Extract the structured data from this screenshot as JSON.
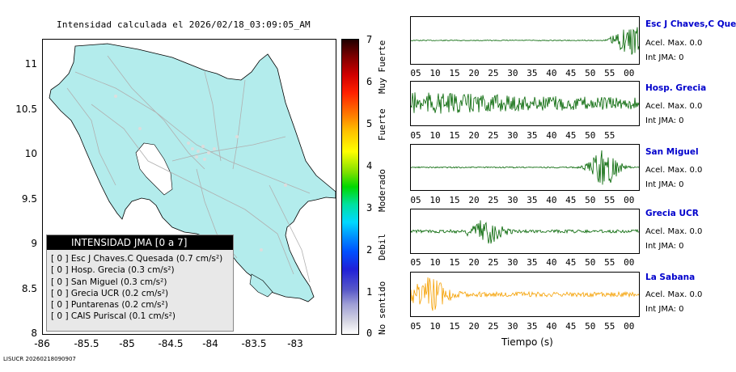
{
  "title": "Intensidad calculada el 2026/02/18_03:09:05_AM",
  "map": {
    "y_ticks": [
      "11",
      "10.5",
      "10",
      "9.5",
      "9",
      "8.5",
      "8"
    ],
    "x_ticks": [
      "-86",
      "-85.5",
      "-85",
      "-84.5",
      "-84",
      "-83.5",
      "-83"
    ],
    "land_color": "#b3ecec",
    "road_color": "#b0b0b0"
  },
  "legend": {
    "title": "INTENSIDAD JMA [0 a 7]",
    "rows": [
      "[ 0 ]  Esc J Chaves.C Quesada (0.7 cm/s²)",
      "[ 0 ]  Hosp. Grecia (0.3 cm/s²)",
      "[ 0 ]  San Miguel (0.3 cm/s²)",
      "[ 0 ]  Grecia UCR (0.2 cm/s²)",
      "[ 0 ]  Puntarenas (0.2 cm/s²)",
      "[ 0 ]  CAIS Puriscal (0.1 cm/s²)"
    ]
  },
  "colorbar": {
    "ticks": [
      "7",
      "6",
      "5",
      "4",
      "3",
      "2",
      "1",
      "0"
    ],
    "labels": [
      "Muy Fuerte",
      "Fuerte",
      "Moderado",
      "Debil",
      "No sentido"
    ]
  },
  "stations": [
    {
      "name": "Esc J Chaves,C Quesada",
      "acel": "Acel. Max. 0.0",
      "int": "Int JMA: 0",
      "ticks": [
        "05",
        "10",
        "15",
        "20",
        "25",
        "30",
        "35",
        "40",
        "45",
        "50",
        "55",
        "00"
      ],
      "color": "#006400"
    },
    {
      "name": "Hosp. Grecia",
      "acel": "Acel. Max. 0.0",
      "int": "Int JMA: 0",
      "ticks": [
        "05",
        "10",
        "15",
        "20",
        "25",
        "30",
        "35",
        "40",
        "45",
        "50",
        "55"
      ],
      "color": "#006400"
    },
    {
      "name": "San Miguel",
      "acel": "Acel. Max. 0.0",
      "int": "Int JMA: 0",
      "ticks": [
        "05",
        "10",
        "15",
        "20",
        "25",
        "30",
        "35",
        "40",
        "45",
        "50",
        "55",
        "00"
      ],
      "color": "#006400"
    },
    {
      "name": "Grecia UCR",
      "acel": "Acel. Max. 0.0",
      "int": "Int JMA: 0",
      "ticks": [
        "05",
        "10",
        "15",
        "20",
        "25",
        "30",
        "35",
        "40",
        "45",
        "50",
        "55",
        "00"
      ],
      "color": "#006400"
    },
    {
      "name": "La Sabana",
      "acel": "Acel. Max. 0.0",
      "int": "Int JMA: 0",
      "ticks": [
        "05",
        "10",
        "15",
        "20",
        "25",
        "30",
        "35",
        "40",
        "45",
        "50",
        "55",
        "00"
      ],
      "color": "#f5a000"
    }
  ],
  "xlabel": "Tiempo (s)",
  "footer": "LISUCR 20260218090907"
}
